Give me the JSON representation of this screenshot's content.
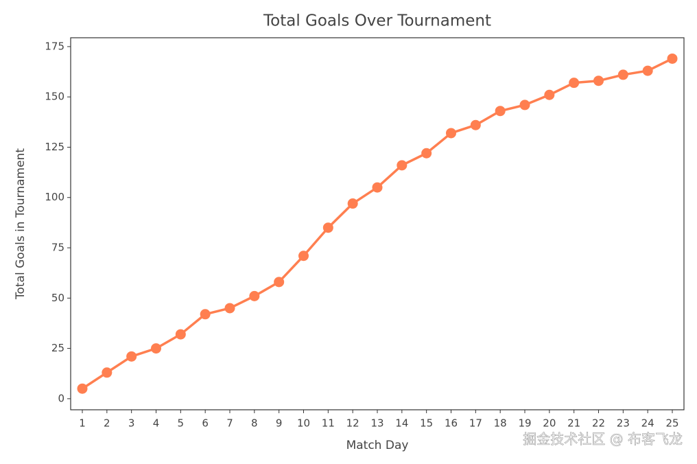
{
  "chart_data": {
    "type": "line",
    "title": "Total Goals Over Tournament",
    "x_label": "Match Day",
    "y_label": "Total Goals in Tournament",
    "categories": [
      "1",
      "2",
      "3",
      "4",
      "5",
      "6",
      "7",
      "8",
      "9",
      "10",
      "11",
      "12",
      "13",
      "14",
      "15",
      "16",
      "17",
      "18",
      "19",
      "20",
      "21",
      "22",
      "23",
      "24",
      "25"
    ],
    "series": [
      {
        "name": "Total Goals",
        "color": "#ff7f50",
        "values": [
          5,
          13,
          21,
          25,
          32,
          42,
          45,
          51,
          58,
          71,
          85,
          97,
          105,
          116,
          122,
          132,
          136,
          143,
          146,
          151,
          157,
          158,
          161,
          163,
          169
        ]
      }
    ],
    "ylim": [
      -5.5,
      179.4
    ],
    "yticks": [
      0,
      25,
      50,
      75,
      100,
      125,
      150,
      175
    ],
    "watermark": "掘金技术社区 @ 布客飞龙"
  }
}
